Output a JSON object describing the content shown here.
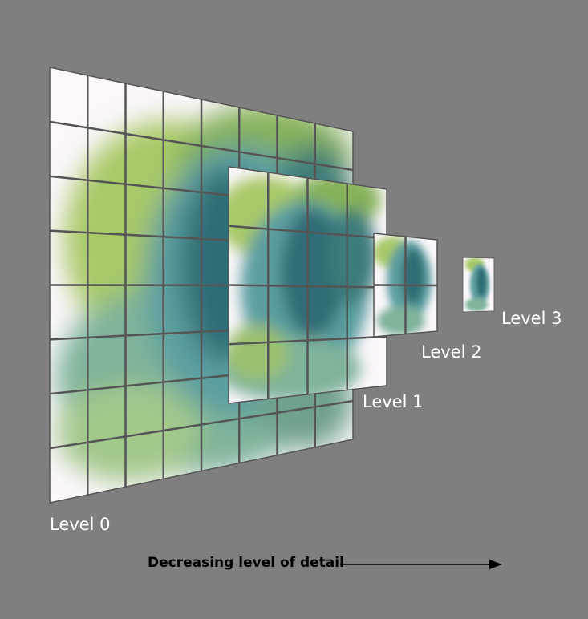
{
  "levels": [
    {
      "label": "Level 0",
      "grid": 8
    },
    {
      "label": "Level 1",
      "grid": 4
    },
    {
      "label": "Level 2",
      "grid": 2
    },
    {
      "label": "Level 3",
      "grid": 1
    }
  ],
  "caption": "Decreasing level of detail",
  "colors": {
    "background": "#7f7f7f",
    "grid_line": "#555555",
    "smoke_dark": "#2f6b74",
    "smoke_teal": "#5fa6a8",
    "smoke_green": "#9ec45a",
    "paper": "#fbf7fb"
  }
}
